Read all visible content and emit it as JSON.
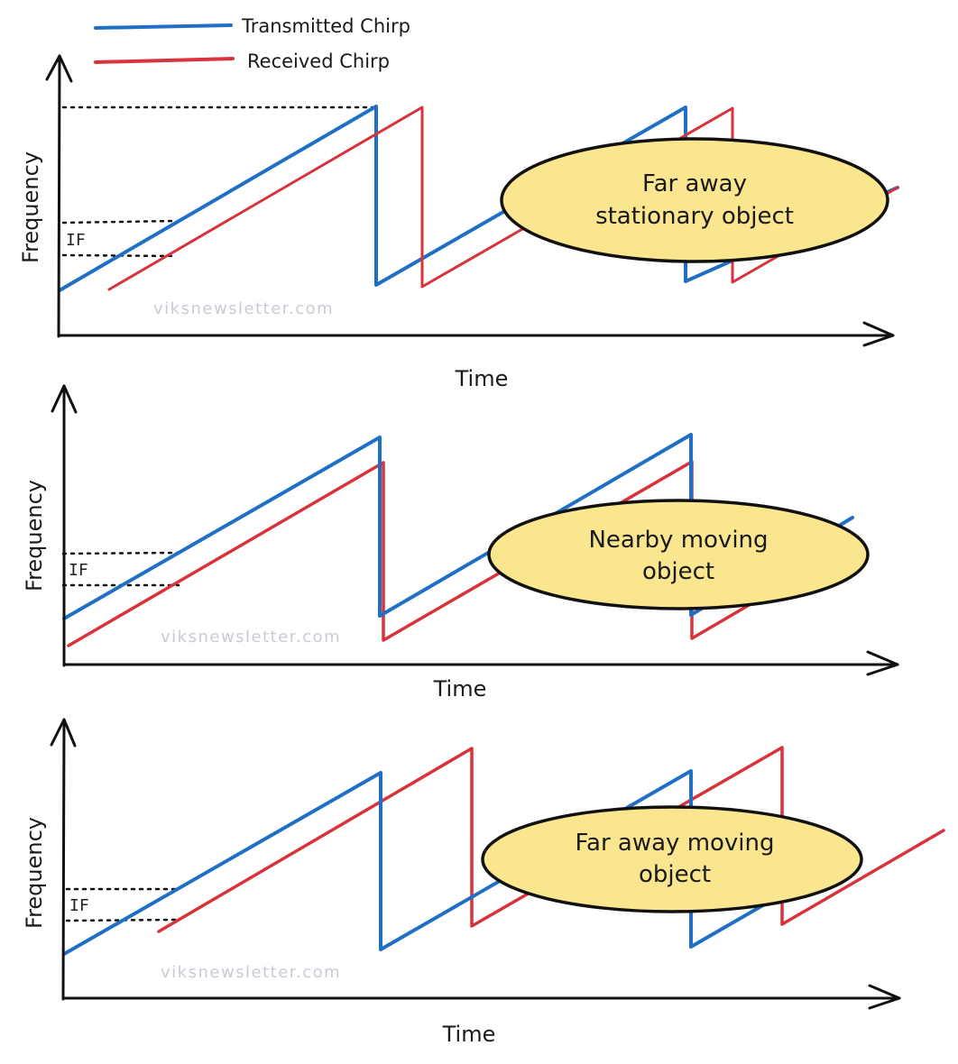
{
  "legend": {
    "transmitted_label": "Transmitted Chirp",
    "received_label": "Received Chirp",
    "transmitted_color": "#1f6fc5",
    "received_color": "#d8333b"
  },
  "panels": [
    {
      "y_label": "Frequency",
      "x_label": "Time",
      "if_label": "IF",
      "watermark": "viksnewsletter.com",
      "bubble_line1": "Far away",
      "bubble_line2": "stationary object"
    },
    {
      "y_label": "Frequency",
      "x_label": "Time",
      "if_label": "IF",
      "watermark": "viksnewsletter.com",
      "bubble_line1": "Nearby moving",
      "bubble_line2": "object"
    },
    {
      "y_label": "Frequency",
      "x_label": "Time",
      "if_label": "IF",
      "watermark": "viksnewsletter.com",
      "bubble_line1": "Far away moving",
      "bubble_line2": "object"
    }
  ],
  "colors": {
    "bubble_fill": "#fbe690",
    "axis": "#111111"
  }
}
